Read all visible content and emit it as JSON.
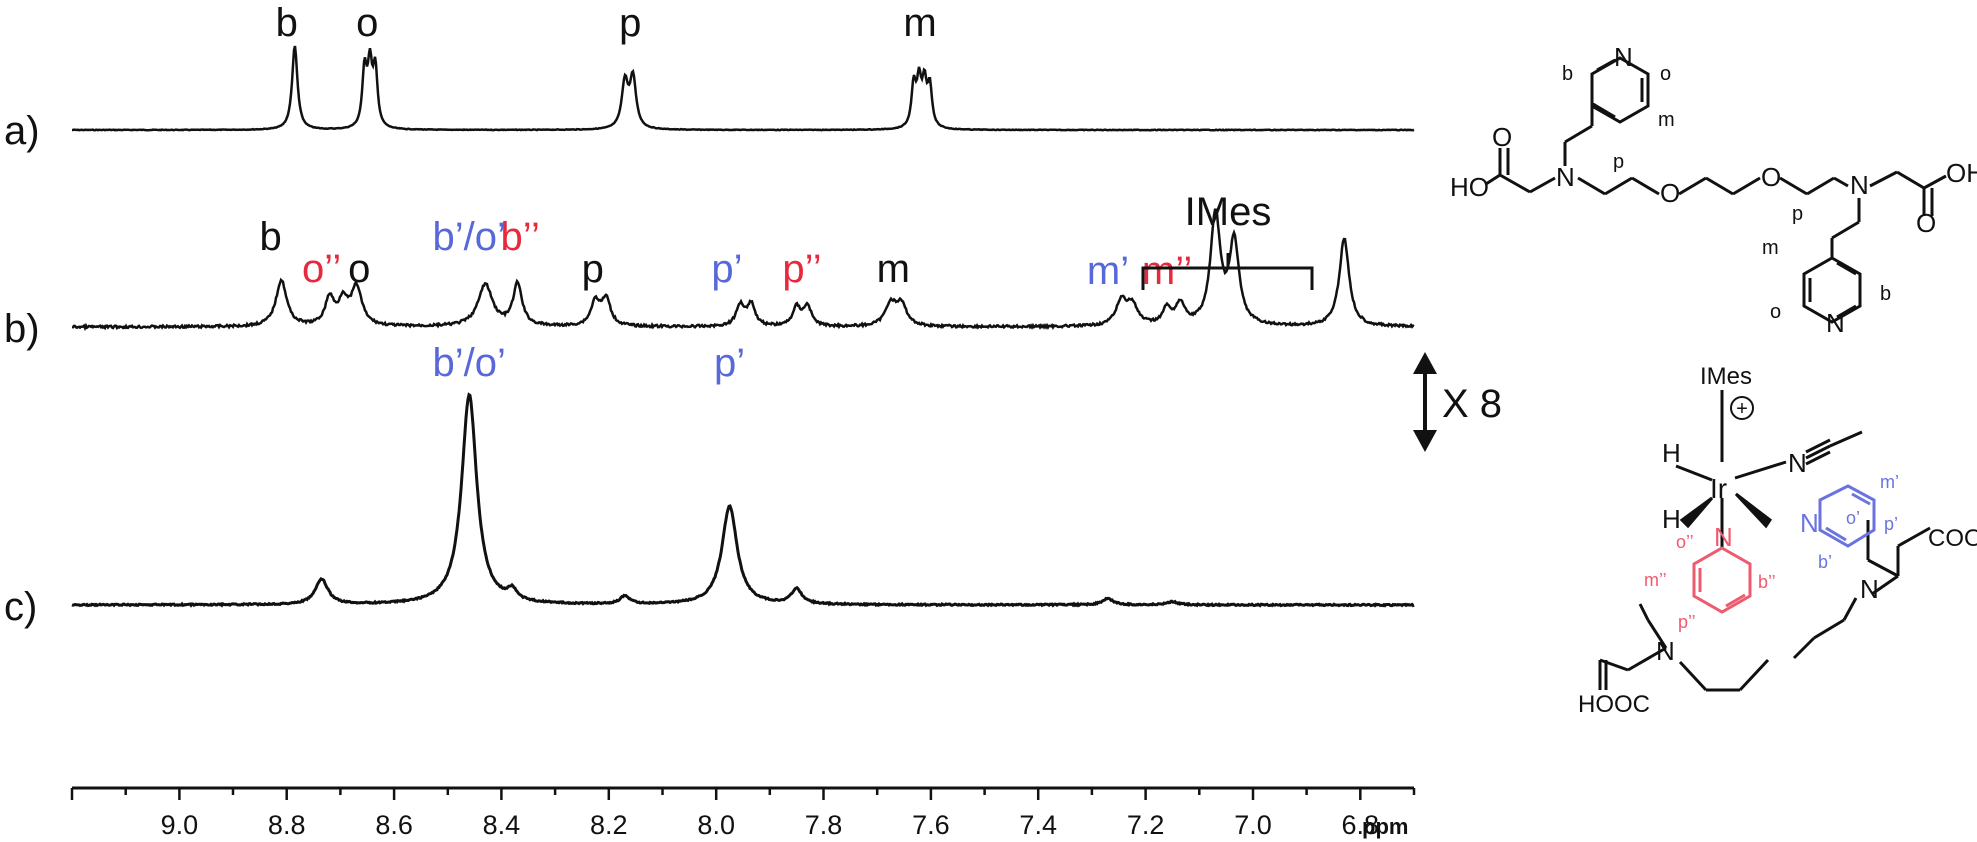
{
  "colors": {
    "black": "#111111",
    "blue": "#5868d8",
    "red": "#e8283c",
    "pink": "#ee5a6e",
    "chem_blue": "#6a73e0"
  },
  "chart_data": {
    "type": "line",
    "x_unit_label": "ppm",
    "x_reversed": true,
    "xlim": [
      9.2,
      6.7
    ],
    "x_ticks": [
      "9.0",
      "8.8",
      "8.6",
      "8.4",
      "8.2",
      "8.0",
      "7.8",
      "7.6",
      "7.4",
      "7.2",
      "7.0",
      "6.8"
    ],
    "x_tick_values": [
      9.0,
      8.8,
      8.6,
      8.4,
      8.2,
      8.0,
      7.8,
      7.6,
      7.4,
      7.2,
      7.0,
      6.8
    ],
    "scale_note": "X 8",
    "imes_label": "IMes",
    "spectra": [
      {
        "label": "a)",
        "peaks": [
          {
            "ppm": 8.785,
            "height": 1.0,
            "width": 0.006
          },
          {
            "ppm": 8.655,
            "height": 0.68,
            "width": 0.005
          },
          {
            "ppm": 8.645,
            "height": 0.7,
            "width": 0.005
          },
          {
            "ppm": 8.635,
            "height": 0.68,
            "width": 0.005
          },
          {
            "ppm": 8.17,
            "height": 0.55,
            "width": 0.007
          },
          {
            "ppm": 8.155,
            "height": 0.6,
            "width": 0.007
          },
          {
            "ppm": 7.632,
            "height": 0.5,
            "width": 0.005
          },
          {
            "ppm": 7.622,
            "height": 0.52,
            "width": 0.005
          },
          {
            "ppm": 7.612,
            "height": 0.5,
            "width": 0.005
          },
          {
            "ppm": 7.602,
            "height": 0.48,
            "width": 0.005
          }
        ],
        "annotations": [
          {
            "text": "b",
            "ppm": 8.8,
            "color": "black",
            "row": 1
          },
          {
            "text": "o",
            "ppm": 8.65,
            "color": "black",
            "row": 1
          },
          {
            "text": "p",
            "ppm": 8.16,
            "color": "black",
            "row": 1
          },
          {
            "text": "m",
            "ppm": 7.62,
            "color": "black",
            "row": 1
          }
        ]
      },
      {
        "label": "b)",
        "peaks": [
          {
            "ppm": 8.81,
            "height": 0.42,
            "width": 0.012
          },
          {
            "ppm": 8.72,
            "height": 0.25,
            "width": 0.01
          },
          {
            "ppm": 8.695,
            "height": 0.22,
            "width": 0.01
          },
          {
            "ppm": 8.67,
            "height": 0.35,
            "width": 0.012
          },
          {
            "ppm": 8.43,
            "height": 0.38,
            "width": 0.016
          },
          {
            "ppm": 8.37,
            "height": 0.38,
            "width": 0.01
          },
          {
            "ppm": 8.225,
            "height": 0.22,
            "width": 0.01
          },
          {
            "ppm": 8.205,
            "height": 0.24,
            "width": 0.01
          },
          {
            "ppm": 7.955,
            "height": 0.19,
            "width": 0.009
          },
          {
            "ppm": 7.935,
            "height": 0.2,
            "width": 0.009
          },
          {
            "ppm": 7.85,
            "height": 0.17,
            "width": 0.009
          },
          {
            "ppm": 7.83,
            "height": 0.18,
            "width": 0.009
          },
          {
            "ppm": 7.675,
            "height": 0.2,
            "width": 0.012
          },
          {
            "ppm": 7.655,
            "height": 0.19,
            "width": 0.012
          },
          {
            "ppm": 7.245,
            "height": 0.22,
            "width": 0.012
          },
          {
            "ppm": 7.225,
            "height": 0.18,
            "width": 0.012
          },
          {
            "ppm": 7.16,
            "height": 0.15,
            "width": 0.01
          },
          {
            "ppm": 7.135,
            "height": 0.19,
            "width": 0.01
          },
          {
            "ppm": 7.07,
            "height": 1.0,
            "width": 0.011
          },
          {
            "ppm": 7.035,
            "height": 0.75,
            "width": 0.011
          },
          {
            "ppm": 6.83,
            "height": 0.8,
            "width": 0.011
          }
        ],
        "annotations": [
          {
            "text": "b",
            "ppm": 8.83,
            "color": "black",
            "row": 1
          },
          {
            "text": "o’’",
            "ppm": 8.735,
            "color": "red",
            "row": 2
          },
          {
            "text": "o",
            "ppm": 8.665,
            "color": "black",
            "row": 2
          },
          {
            "text": "b’/o’",
            "ppm": 8.46,
            "color": "blue",
            "row": 1
          },
          {
            "text": "b’’",
            "ppm": 8.365,
            "color": "red",
            "row": 1
          },
          {
            "text": "p",
            "ppm": 8.23,
            "color": "black",
            "row": 2
          },
          {
            "text": "p’",
            "ppm": 7.98,
            "color": "blue",
            "row": 2
          },
          {
            "text": "p’’",
            "ppm": 7.84,
            "color": "red",
            "row": 2
          },
          {
            "text": "m",
            "ppm": 7.67,
            "color": "black",
            "row": 2
          },
          {
            "text": "m’",
            "ppm": 7.27,
            "color": "blue",
            "row": 3
          },
          {
            "text": "m’’",
            "ppm": 7.16,
            "color": "red",
            "row": 3
          }
        ]
      },
      {
        "label": "c)",
        "peaks": [
          {
            "ppm": 8.735,
            "height": 0.12,
            "width": 0.014
          },
          {
            "ppm": 8.46,
            "height": 1.0,
            "width": 0.017
          },
          {
            "ppm": 8.38,
            "height": 0.05,
            "width": 0.01
          },
          {
            "ppm": 8.17,
            "height": 0.04,
            "width": 0.01
          },
          {
            "ppm": 7.975,
            "height": 0.47,
            "width": 0.017
          },
          {
            "ppm": 7.85,
            "height": 0.07,
            "width": 0.012
          },
          {
            "ppm": 7.27,
            "height": 0.03,
            "width": 0.012
          },
          {
            "ppm": 7.15,
            "height": 0.015,
            "width": 0.012
          }
        ],
        "annotations": [
          {
            "text": "b’/o’",
            "ppm": 8.46,
            "color": "blue",
            "row": 1
          },
          {
            "text": "p’",
            "ppm": 7.975,
            "color": "blue",
            "row": 1
          }
        ]
      }
    ]
  },
  "structures": {
    "top": {
      "labels": [
        "b",
        "o",
        "m",
        "p",
        "p",
        "m",
        "o",
        "b",
        "HO",
        "OH",
        "N",
        "N",
        "N",
        "N",
        "O",
        "O",
        "O",
        "O"
      ]
    },
    "bottom": {
      "ligand_top": "IMes",
      "charge": "+",
      "hydride": "H",
      "iridium": "Ir",
      "nitrile_n": "N",
      "acid": "COOH",
      "acid2": "HOOC",
      "blue_labels": [
        "o’",
        "m’",
        "p’",
        "b’"
      ],
      "red_labels": [
        "o’’",
        "m’’",
        "p’’",
        "b’’"
      ]
    }
  }
}
